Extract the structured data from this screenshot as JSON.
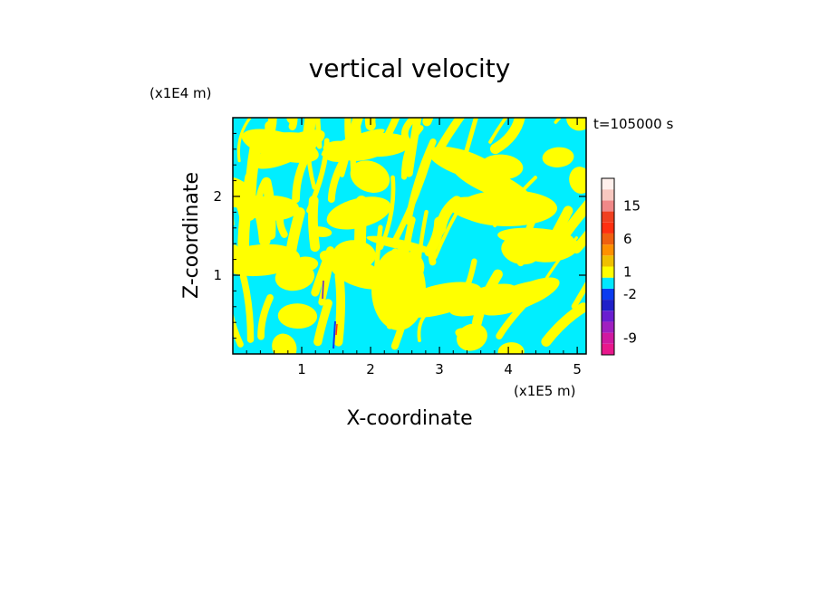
{
  "chart_data": {
    "type": "heatmap",
    "title": "vertical velocity",
    "xlabel": "X-coordinate",
    "ylabel": "Z-coordinate",
    "x_unit": "(x1E5 m)",
    "y_unit": "(x1E4 m)",
    "time_label": "t=105000 s",
    "xlim": [
      0,
      5.13
    ],
    "ylim": [
      0,
      3.0
    ],
    "xticks": [
      1,
      2,
      3,
      4,
      5
    ],
    "yticks": [
      1,
      2
    ],
    "colorbar": {
      "levels": [
        {
          "label": "",
          "color": "#e8188c"
        },
        {
          "label": "-9",
          "color": "#d01aa0"
        },
        {
          "label": "",
          "color": "#a020c0"
        },
        {
          "label": "",
          "color": "#6a1ed0"
        },
        {
          "label": "",
          "color": "#2020c8"
        },
        {
          "label": "-2",
          "color": "#0a3cf0"
        },
        {
          "label": "",
          "color": "#00e8ff"
        },
        {
          "label": "1",
          "color": "#ffff00"
        },
        {
          "label": "",
          "color": "#f0c000"
        },
        {
          "label": "",
          "color": "#ff9000"
        },
        {
          "label": "6",
          "color": "#f06010"
        },
        {
          "label": "",
          "color": "#ff3010"
        },
        {
          "label": "",
          "color": "#f04020"
        },
        {
          "label": "15",
          "color": "#f08888"
        },
        {
          "label": "",
          "color": "#f8c8c0"
        },
        {
          "label": "",
          "color": "#fff0ec"
        }
      ]
    },
    "field": {
      "dominant_colors": [
        "#00eeff",
        "#ffff00"
      ],
      "description_colors_note": "alternating positive (yellow) and negative (cyan) bands"
    }
  }
}
